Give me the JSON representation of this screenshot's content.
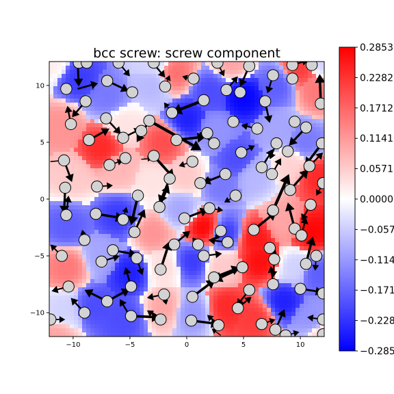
{
  "chart_data": {
    "type": "heatmap",
    "title": "bcc screw: screw component",
    "xlabel": "",
    "ylabel": "",
    "xlim": [
      -12.1,
      12.1
    ],
    "ylim": [
      -12.1,
      12.1
    ],
    "xticks": [
      -10,
      -5,
      0,
      5,
      10
    ],
    "yticks": [
      -10,
      -5,
      0,
      5,
      10
    ],
    "colormap": "bwr",
    "colors": {
      "low": "#0000ff",
      "mid": "#ffffff",
      "high": "#ff0000"
    },
    "colorbar": {
      "vmin": -0.2853,
      "vmax": 0.2853,
      "ticks": [
        0.2853,
        0.2282,
        0.1712,
        0.1141,
        0.0571,
        0.0,
        -0.0571,
        -0.1141,
        -0.1712,
        -0.2282,
        -0.2853
      ],
      "tick_labels": [
        "0.2853",
        "0.2282",
        "0.1712",
        "0.1141",
        "0.0571",
        "0.0000",
        "−0.0571",
        "−0.1141",
        "−0.1712",
        "−0.2282",
        "−0.2853"
      ]
    },
    "field_samples": [
      {
        "x": -9.5,
        "y": 10.5,
        "v": -0.22
      },
      {
        "x": -7,
        "y": 9,
        "v": -0.15
      },
      {
        "x": -3,
        "y": 10,
        "v": -0.08
      },
      {
        "x": -1,
        "y": 11,
        "v": 0.16
      },
      {
        "x": 2,
        "y": 9.5,
        "v": -0.2
      },
      {
        "x": 5,
        "y": 9,
        "v": -0.28
      },
      {
        "x": 8,
        "y": 10,
        "v": -0.18
      },
      {
        "x": 10,
        "y": 11.5,
        "v": 0.22
      },
      {
        "x": 11.5,
        "y": 9.5,
        "v": 0.15
      },
      {
        "x": -11,
        "y": 6.5,
        "v": 0.12
      },
      {
        "x": -7.5,
        "y": 4.5,
        "v": 0.24
      },
      {
        "x": -5.5,
        "y": 6.5,
        "v": 0.03
      },
      {
        "x": -2,
        "y": 5,
        "v": 0.2
      },
      {
        "x": 0,
        "y": 7,
        "v": -0.25
      },
      {
        "x": 2.5,
        "y": 6,
        "v": -0.12
      },
      {
        "x": 4.5,
        "y": 3.5,
        "v": -0.2
      },
      {
        "x": 8,
        "y": 6,
        "v": -0.1
      },
      {
        "x": 10.5,
        "y": 5,
        "v": -0.15
      },
      {
        "x": -10,
        "y": 2,
        "v": 0.06
      },
      {
        "x": -6,
        "y": 2.5,
        "v": 0.08
      },
      {
        "x": -3,
        "y": 1.5,
        "v": 0.03
      },
      {
        "x": 0,
        "y": 2,
        "v": 0.06
      },
      {
        "x": 3,
        "y": 1,
        "v": -0.15
      },
      {
        "x": 6,
        "y": 2,
        "v": -0.08
      },
      {
        "x": 9,
        "y": 3,
        "v": 0.05
      },
      {
        "x": 11.5,
        "y": 2,
        "v": 0.24
      },
      {
        "x": -10.5,
        "y": -2.5,
        "v": -0.18
      },
      {
        "x": -6,
        "y": -1.5,
        "v": -0.22
      },
      {
        "x": -3,
        "y": -3,
        "v": 0.12
      },
      {
        "x": -0.5,
        "y": -1,
        "v": -0.1
      },
      {
        "x": 1.5,
        "y": -2.5,
        "v": 0.28
      },
      {
        "x": 3.5,
        "y": -3,
        "v": -0.22
      },
      {
        "x": 6,
        "y": -3.5,
        "v": 0.26
      },
      {
        "x": 8.5,
        "y": -2,
        "v": 0.1
      },
      {
        "x": 11,
        "y": -3,
        "v": 0.28
      },
      {
        "x": -10.5,
        "y": -6,
        "v": 0.15
      },
      {
        "x": -7.5,
        "y": -5,
        "v": -0.1
      },
      {
        "x": -5,
        "y": -6.5,
        "v": -0.25
      },
      {
        "x": -2,
        "y": -6,
        "v": 0.04
      },
      {
        "x": 0.5,
        "y": -5.5,
        "v": -0.22
      },
      {
        "x": 3,
        "y": -6,
        "v": 0.06
      },
      {
        "x": 6.5,
        "y": -5.5,
        "v": 0.27
      },
      {
        "x": 9.5,
        "y": -6,
        "v": -0.05
      },
      {
        "x": 11.5,
        "y": -6.5,
        "v": -0.18
      },
      {
        "x": -11,
        "y": -10,
        "v": -0.05
      },
      {
        "x": -8,
        "y": -9.5,
        "v": -0.2
      },
      {
        "x": -5.5,
        "y": -10.5,
        "v": -0.2
      },
      {
        "x": -2,
        "y": -9.5,
        "v": 0.1
      },
      {
        "x": 0.5,
        "y": -10,
        "v": -0.12
      },
      {
        "x": 3.5,
        "y": -9.5,
        "v": 0.24
      },
      {
        "x": 6,
        "y": -10.5,
        "v": 0.22
      },
      {
        "x": 8.5,
        "y": -9,
        "v": -0.25
      },
      {
        "x": 11,
        "y": -10.5,
        "v": -0.12
      },
      {
        "x": -11.5,
        "y": -12,
        "v": 0.1
      },
      {
        "x": -3,
        "y": 12,
        "v": -0.05
      },
      {
        "x": 4,
        "y": 12,
        "v": 0.1
      },
      {
        "x": -12,
        "y": 12,
        "v": 0.02
      },
      {
        "x": 12,
        "y": -12,
        "v": 0.05
      },
      {
        "x": 12,
        "y": 12,
        "v": -0.05
      }
    ],
    "atoms": [
      [
        -9.5,
        12.0
      ],
      [
        -8.8,
        12.0
      ],
      [
        -6.0,
        12.0
      ],
      [
        -2.9,
        12.0
      ],
      [
        2.7,
        12.0
      ],
      [
        5.5,
        11.7
      ],
      [
        9.3,
        11.8
      ],
      [
        11.0,
        11.8
      ],
      [
        -10.6,
        9.7
      ],
      [
        -7.0,
        10.4
      ],
      [
        -4.8,
        9.4
      ],
      [
        -1.9,
        9.9
      ],
      [
        0.6,
        10.6
      ],
      [
        3.5,
        9.6
      ],
      [
        4.7,
        9.4
      ],
      [
        7.6,
        10.9
      ],
      [
        9.3,
        10.6
      ],
      [
        -8.9,
        8.6
      ],
      [
        -1.3,
        7.6
      ],
      [
        1.5,
        8.7
      ],
      [
        6.9,
        8.6
      ],
      [
        11.8,
        8.4
      ],
      [
        -10.2,
        6.6
      ],
      [
        -7.1,
        7.1
      ],
      [
        -3.3,
        6.9
      ],
      [
        -4.0,
        6.0
      ],
      [
        4.1,
        6.8
      ],
      [
        6.2,
        6.2
      ],
      [
        9.5,
        6.8
      ],
      [
        10.5,
        6.3
      ],
      [
        -8.6,
        5.2
      ],
      [
        -5.6,
        5.4
      ],
      [
        -0.9,
        5.2
      ],
      [
        1.8,
        5.8
      ],
      [
        2.4,
        4.9
      ],
      [
        7.9,
        4.9
      ],
      [
        8.9,
        4.2
      ],
      [
        4.8,
        4.1
      ],
      [
        11.9,
        4.9
      ],
      [
        -10.8,
        3.4
      ],
      [
        -6.8,
        3.0
      ],
      [
        -5.4,
        3.6
      ],
      [
        -2.9,
        3.8
      ],
      [
        0.5,
        3.3
      ],
      [
        6.6,
        2.8
      ],
      [
        7.5,
        2.2
      ],
      [
        10.8,
        2.9
      ],
      [
        -10.7,
        1.0
      ],
      [
        -7.9,
        1.1
      ],
      [
        -1.5,
        1.8
      ],
      [
        1.2,
        1.4
      ],
      [
        3.4,
        2.2
      ],
      [
        12.0,
        1.4
      ],
      [
        -4.3,
        0.3
      ],
      [
        4.3,
        0.3
      ],
      [
        9.1,
        0.8
      ],
      [
        10.9,
        -0.5
      ],
      [
        -10.6,
        -1.4
      ],
      [
        -8.0,
        -1.3
      ],
      [
        -5.6,
        -1.8
      ],
      [
        -2.4,
        -0.7
      ],
      [
        -0.2,
        -1.7
      ],
      [
        2.0,
        -0.8
      ],
      [
        7.6,
        -1.0
      ],
      [
        -4.6,
        -2.9
      ],
      [
        3.0,
        -2.8
      ],
      [
        5.9,
        -2.7
      ],
      [
        9.5,
        -2.6
      ],
      [
        10.1,
        -3.2
      ],
      [
        -9.0,
        -3.6
      ],
      [
        -6.5,
        -4.5
      ],
      [
        -1.1,
        -4.0
      ],
      [
        1.0,
        -4.0
      ],
      [
        3.6,
        -3.8
      ],
      [
        7.3,
        -4.3
      ],
      [
        -11.0,
        -5.0
      ],
      [
        -7.5,
        -5.5
      ],
      [
        -4.4,
        -5.2
      ],
      [
        1.5,
        -5.0
      ],
      [
        7.7,
        -5.3
      ],
      [
        10.5,
        -5.7
      ],
      [
        -2.3,
        -6.2
      ],
      [
        4.9,
        -6.0
      ],
      [
        11.4,
        -5.0
      ],
      [
        -10.4,
        -7.7
      ],
      [
        -4.9,
        -7.7
      ],
      [
        2.4,
        -6.9
      ],
      [
        7.6,
        -7.5
      ],
      [
        10.0,
        -7.9
      ],
      [
        12.0,
        -8.3
      ],
      [
        -7.0,
        -9.0
      ],
      [
        -2.0,
        -8.4
      ],
      [
        0.5,
        -8.6
      ],
      [
        5.5,
        -8.0
      ],
      [
        4.5,
        -9.6
      ],
      [
        -9.0,
        -10.0
      ],
      [
        -4.9,
        -10.3
      ],
      [
        -2.3,
        -10.6
      ],
      [
        0.4,
        -10.7
      ],
      [
        2.8,
        -11.1
      ],
      [
        6.6,
        -11.0
      ],
      [
        7.8,
        -11.5
      ],
      [
        -12.0,
        -10.6
      ],
      [
        8.7,
        -12.0
      ],
      [
        12.0,
        -10.6
      ],
      [
        12.0,
        -11.9
      ]
    ],
    "arrows": [
      [
        -9.6,
        12.1,
        0.1,
        -2.2
      ],
      [
        -9.6,
        9.7,
        1.8,
        0.5
      ],
      [
        -6.0,
        12.0,
        1.0,
        -1.2
      ],
      [
        -7.0,
        10.4,
        1.9,
        -0.9
      ],
      [
        -3.0,
        12.0,
        1.1,
        -1.3
      ],
      [
        -1.9,
        9.9,
        0.4,
        1.0
      ],
      [
        0.6,
        10.5,
        -1.0,
        0.3
      ],
      [
        2.7,
        12.0,
        0.6,
        -1.2
      ],
      [
        5.5,
        11.7,
        -0.8,
        -1.8
      ],
      [
        3.5,
        9.6,
        1.0,
        1.2
      ],
      [
        7.6,
        10.9,
        -0.5,
        -1.6
      ],
      [
        9.3,
        11.8,
        1.4,
        0.4
      ],
      [
        11.8,
        8.4,
        -0.1,
        2.6
      ],
      [
        1.5,
        8.7,
        -2.8,
        -1.1
      ],
      [
        6.9,
        8.6,
        0.4,
        -1.9
      ],
      [
        -1.3,
        7.6,
        -0.7,
        0.9
      ],
      [
        -8.9,
        8.6,
        -1.2,
        -1.4
      ],
      [
        -10.2,
        6.6,
        -0.3,
        1.6
      ],
      [
        -7.1,
        7.1,
        1.3,
        -1.4
      ],
      [
        -3.3,
        6.9,
        4.6,
        -2.6
      ],
      [
        -3.3,
        6.9,
        -1.1,
        -1.9
      ],
      [
        -0.9,
        5.2,
        2.6,
        0.3
      ],
      [
        2.4,
        4.9,
        -1.3,
        1.0
      ],
      [
        -8.6,
        5.2,
        1.8,
        1.0
      ],
      [
        -5.6,
        5.4,
        1.6,
        0.8
      ],
      [
        4.8,
        4.1,
        1.2,
        0.6
      ],
      [
        6.2,
        6.2,
        -1.4,
        0.3
      ],
      [
        7.9,
        4.9,
        -0.6,
        -1.4
      ],
      [
        10.5,
        6.3,
        -1.5,
        -1.6
      ],
      [
        11.9,
        4.9,
        -1.5,
        -2.0
      ],
      [
        -12.0,
        3.3,
        1.2,
        0.1
      ],
      [
        -10.8,
        3.4,
        0.7,
        -1.9
      ],
      [
        -6.8,
        3.0,
        1.2,
        0.4
      ],
      [
        -2.9,
        3.8,
        1.8,
        -2.0
      ],
      [
        0.5,
        3.3,
        -1.2,
        -0.4
      ],
      [
        -4.0,
        3.5,
        1.0,
        0.1
      ],
      [
        3.4,
        2.2,
        -2.0,
        -0.8
      ],
      [
        6.6,
        2.8,
        1.0,
        1.6
      ],
      [
        7.5,
        2.2,
        0.8,
        1.4
      ],
      [
        10.8,
        2.9,
        1.2,
        1.2
      ],
      [
        9.1,
        0.8,
        1.6,
        1.8
      ],
      [
        -10.7,
        1.0,
        -0.1,
        -2.3
      ],
      [
        -7.9,
        1.1,
        1.4,
        0.1
      ],
      [
        -1.5,
        1.8,
        -0.9,
        -2.2
      ],
      [
        1.2,
        1.4,
        1.0,
        0.4
      ],
      [
        12.0,
        1.4,
        -0.6,
        -1.1
      ],
      [
        -4.3,
        0.3,
        -0.6,
        -2.6
      ],
      [
        4.3,
        0.3,
        -1.0,
        -0.6
      ],
      [
        10.9,
        -0.5,
        -0.8,
        -1.4
      ],
      [
        7.6,
        -1.0,
        1.4,
        3.2
      ],
      [
        5.9,
        -2.7,
        2.0,
        1.6
      ],
      [
        -8.0,
        -1.3,
        2.5,
        -0.4
      ],
      [
        -10.6,
        -1.4,
        0.2,
        1.7
      ],
      [
        -5.6,
        -1.8,
        0.3,
        1.1
      ],
      [
        -2.4,
        -0.7,
        0.8,
        1.9
      ],
      [
        -0.2,
        -1.7,
        2.1,
        0.8
      ],
      [
        2.0,
        -0.8,
        1.2,
        -0.2
      ],
      [
        -4.6,
        -2.9,
        0.9,
        2.0
      ],
      [
        3.0,
        -2.8,
        -0.5,
        -0.8
      ],
      [
        10.1,
        -3.2,
        0.4,
        1.6
      ],
      [
        9.5,
        -2.6,
        -0.6,
        2.3
      ],
      [
        -9.0,
        -3.6,
        -0.2,
        0.9
      ],
      [
        -6.5,
        -4.5,
        2.1,
        -0.4
      ],
      [
        -1.1,
        -4.0,
        1.4,
        1.2
      ],
      [
        1.0,
        -4.0,
        -0.5,
        0.6
      ],
      [
        3.6,
        -3.8,
        -1.7,
        0.2
      ],
      [
        7.3,
        -4.3,
        0.6,
        -0.5
      ],
      [
        -11.0,
        -5.0,
        -1.0,
        1.0
      ],
      [
        -7.5,
        -5.5,
        1.6,
        0.5
      ],
      [
        -4.4,
        -5.2,
        0.5,
        -1.5
      ],
      [
        1.5,
        -5.0,
        1.6,
        0.2
      ],
      [
        7.7,
        -5.3,
        -0.1,
        -1.6
      ],
      [
        10.5,
        -5.7,
        0.6,
        2.4
      ],
      [
        11.4,
        -5.0,
        -0.1,
        -1.3
      ],
      [
        -2.3,
        -6.2,
        0.8,
        2.5
      ],
      [
        4.9,
        -6.0,
        -2.6,
        -1.2
      ],
      [
        -10.4,
        -7.7,
        -1.5,
        -0.4
      ],
      [
        -4.9,
        -7.7,
        -0.5,
        1.7
      ],
      [
        2.4,
        -6.9,
        2.3,
        0.9
      ],
      [
        7.6,
        -7.5,
        -0.2,
        1.6
      ],
      [
        10.0,
        -7.9,
        2.0,
        -0.3
      ],
      [
        -7.0,
        -9.0,
        2.0,
        1.1
      ],
      [
        -2.0,
        -8.4,
        0.2,
        -0.9
      ],
      [
        0.5,
        -8.6,
        2.0,
        1.5
      ],
      [
        5.5,
        -8.0,
        -1.1,
        -1.4
      ],
      [
        4.5,
        -9.6,
        1.2,
        1.0
      ],
      [
        -9.0,
        -10.0,
        -1.2,
        1.3
      ],
      [
        -7.0,
        -9.0,
        -2.0,
        1.0
      ],
      [
        -4.9,
        -10.3,
        2.6,
        -0.1
      ],
      [
        -2.3,
        -10.6,
        -1.2,
        0.8
      ],
      [
        0.4,
        -10.7,
        2.5,
        -0.3
      ],
      [
        2.8,
        -11.1,
        -1.0,
        0.9
      ],
      [
        6.6,
        -11.0,
        1.2,
        0.4
      ],
      [
        7.8,
        -11.5,
        0.8,
        1.8
      ],
      [
        -12.0,
        -10.6,
        1.3,
        0.0
      ],
      [
        12.0,
        -10.6,
        -1.4,
        0.2
      ],
      [
        8.7,
        -12.0,
        1.2,
        0.3
      ],
      [
        -5.0,
        -10.3,
        -0.9,
        1.5
      ],
      [
        3.0,
        -12.0,
        -0.8,
        0.6
      ],
      [
        -2.0,
        -8.4,
        -1.5,
        -0.3
      ]
    ]
  }
}
